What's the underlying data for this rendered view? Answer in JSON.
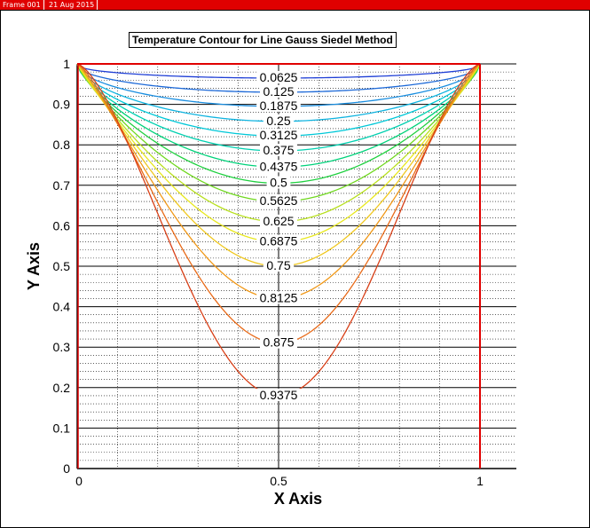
{
  "frame": {
    "name": "Frame 001",
    "date": "21 Aug 2015",
    "color": "#e00000"
  },
  "chart_data": {
    "type": "contour",
    "title": "Temperature Contour for Line Gauss Siedel Method",
    "xlabel": "X Axis",
    "ylabel": "Y Axis",
    "xlim": [
      0,
      1
    ],
    "ylim": [
      0,
      1
    ],
    "xticks": [
      "0",
      "0.5",
      "1"
    ],
    "yticks": [
      "0",
      "0.1",
      "0.2",
      "0.3",
      "0.4",
      "0.5",
      "0.6",
      "0.7",
      "0.8",
      "0.9",
      "1"
    ],
    "grid": true,
    "boundary": {
      "top": 0,
      "left": 1,
      "bottom": 1,
      "right": 1
    },
    "levels": [
      {
        "label": "0.0625",
        "value": 0.0625,
        "min_y": 0.965,
        "color": "#1f3fd6"
      },
      {
        "label": "0.125",
        "value": 0.125,
        "min_y": 0.93,
        "color": "#1e6ad8"
      },
      {
        "label": "0.1875",
        "value": 0.1875,
        "min_y": 0.895,
        "color": "#1a8ee0"
      },
      {
        "label": "0.25",
        "value": 0.25,
        "min_y": 0.858,
        "color": "#10b4e0"
      },
      {
        "label": "0.3125",
        "value": 0.3125,
        "min_y": 0.822,
        "color": "#00c8d8"
      },
      {
        "label": "0.375",
        "value": 0.375,
        "min_y": 0.785,
        "color": "#00d0b0"
      },
      {
        "label": "0.4375",
        "value": 0.4375,
        "min_y": 0.745,
        "color": "#00d27a"
      },
      {
        "label": "0.5",
        "value": 0.5,
        "min_y": 0.705,
        "color": "#20d040"
      },
      {
        "label": "0.5625",
        "value": 0.5625,
        "min_y": 0.66,
        "color": "#70d820"
      },
      {
        "label": "0.625",
        "value": 0.625,
        "min_y": 0.61,
        "color": "#b8e020"
      },
      {
        "label": "0.6875",
        "value": 0.6875,
        "min_y": 0.56,
        "color": "#e8e820"
      },
      {
        "label": "0.75",
        "value": 0.75,
        "min_y": 0.5,
        "color": "#f0c820"
      },
      {
        "label": "0.8125",
        "value": 0.8125,
        "min_y": 0.42,
        "color": "#f09818"
      },
      {
        "label": "0.875",
        "value": 0.875,
        "min_y": 0.31,
        "color": "#e86a18"
      },
      {
        "label": "0.9375",
        "value": 0.9375,
        "min_y": 0.18,
        "color": "#d84018"
      }
    ]
  }
}
